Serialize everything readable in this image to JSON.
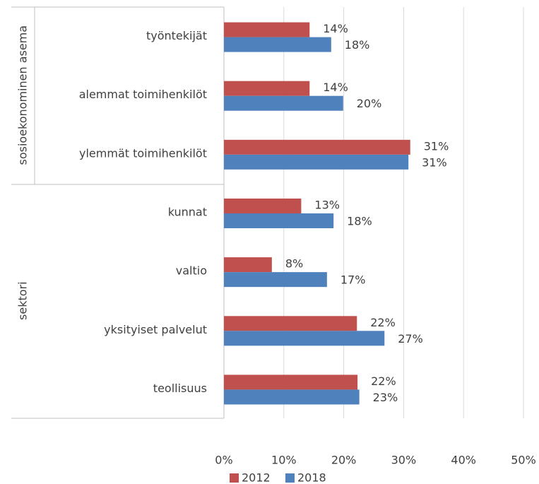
{
  "chart_data": {
    "type": "bar",
    "orientation": "horizontal",
    "categories": [
      "työntekijät",
      "alemmat toimihenkilöt",
      "ylemmät toimihenkilöt",
      "kunnat",
      "valtio",
      "yksityiset palvelut",
      "teollisuus"
    ],
    "groups": [
      {
        "name": "sosioekonominen asema",
        "count": 3
      },
      {
        "name": "sektori",
        "count": 4
      }
    ],
    "series": [
      {
        "name": "2012",
        "color": "#c0504d",
        "values": [
          14.3,
          14.3,
          31.1,
          12.9,
          8.0,
          22.2,
          22.3
        ],
        "value_labels": [
          "14%",
          "14%",
          "31%",
          "13%",
          "8%",
          "22%",
          "22%"
        ]
      },
      {
        "name": "2018",
        "color": "#4f81bd",
        "values": [
          17.9,
          19.9,
          30.8,
          18.3,
          17.2,
          26.8,
          22.6
        ],
        "value_labels": [
          "18%",
          "20%",
          "31%",
          "18%",
          "17%",
          "27%",
          "23%"
        ]
      }
    ],
    "xlim": [
      0,
      50
    ],
    "xticks": [
      {
        "value": 0,
        "label": "0%"
      },
      {
        "value": 10,
        "label": "10%"
      },
      {
        "value": 20,
        "label": "20%"
      },
      {
        "value": 30,
        "label": "30%"
      },
      {
        "value": 40,
        "label": "40%"
      },
      {
        "value": 50,
        "label": "50%"
      }
    ],
    "grid": true,
    "legend": "bottom"
  }
}
